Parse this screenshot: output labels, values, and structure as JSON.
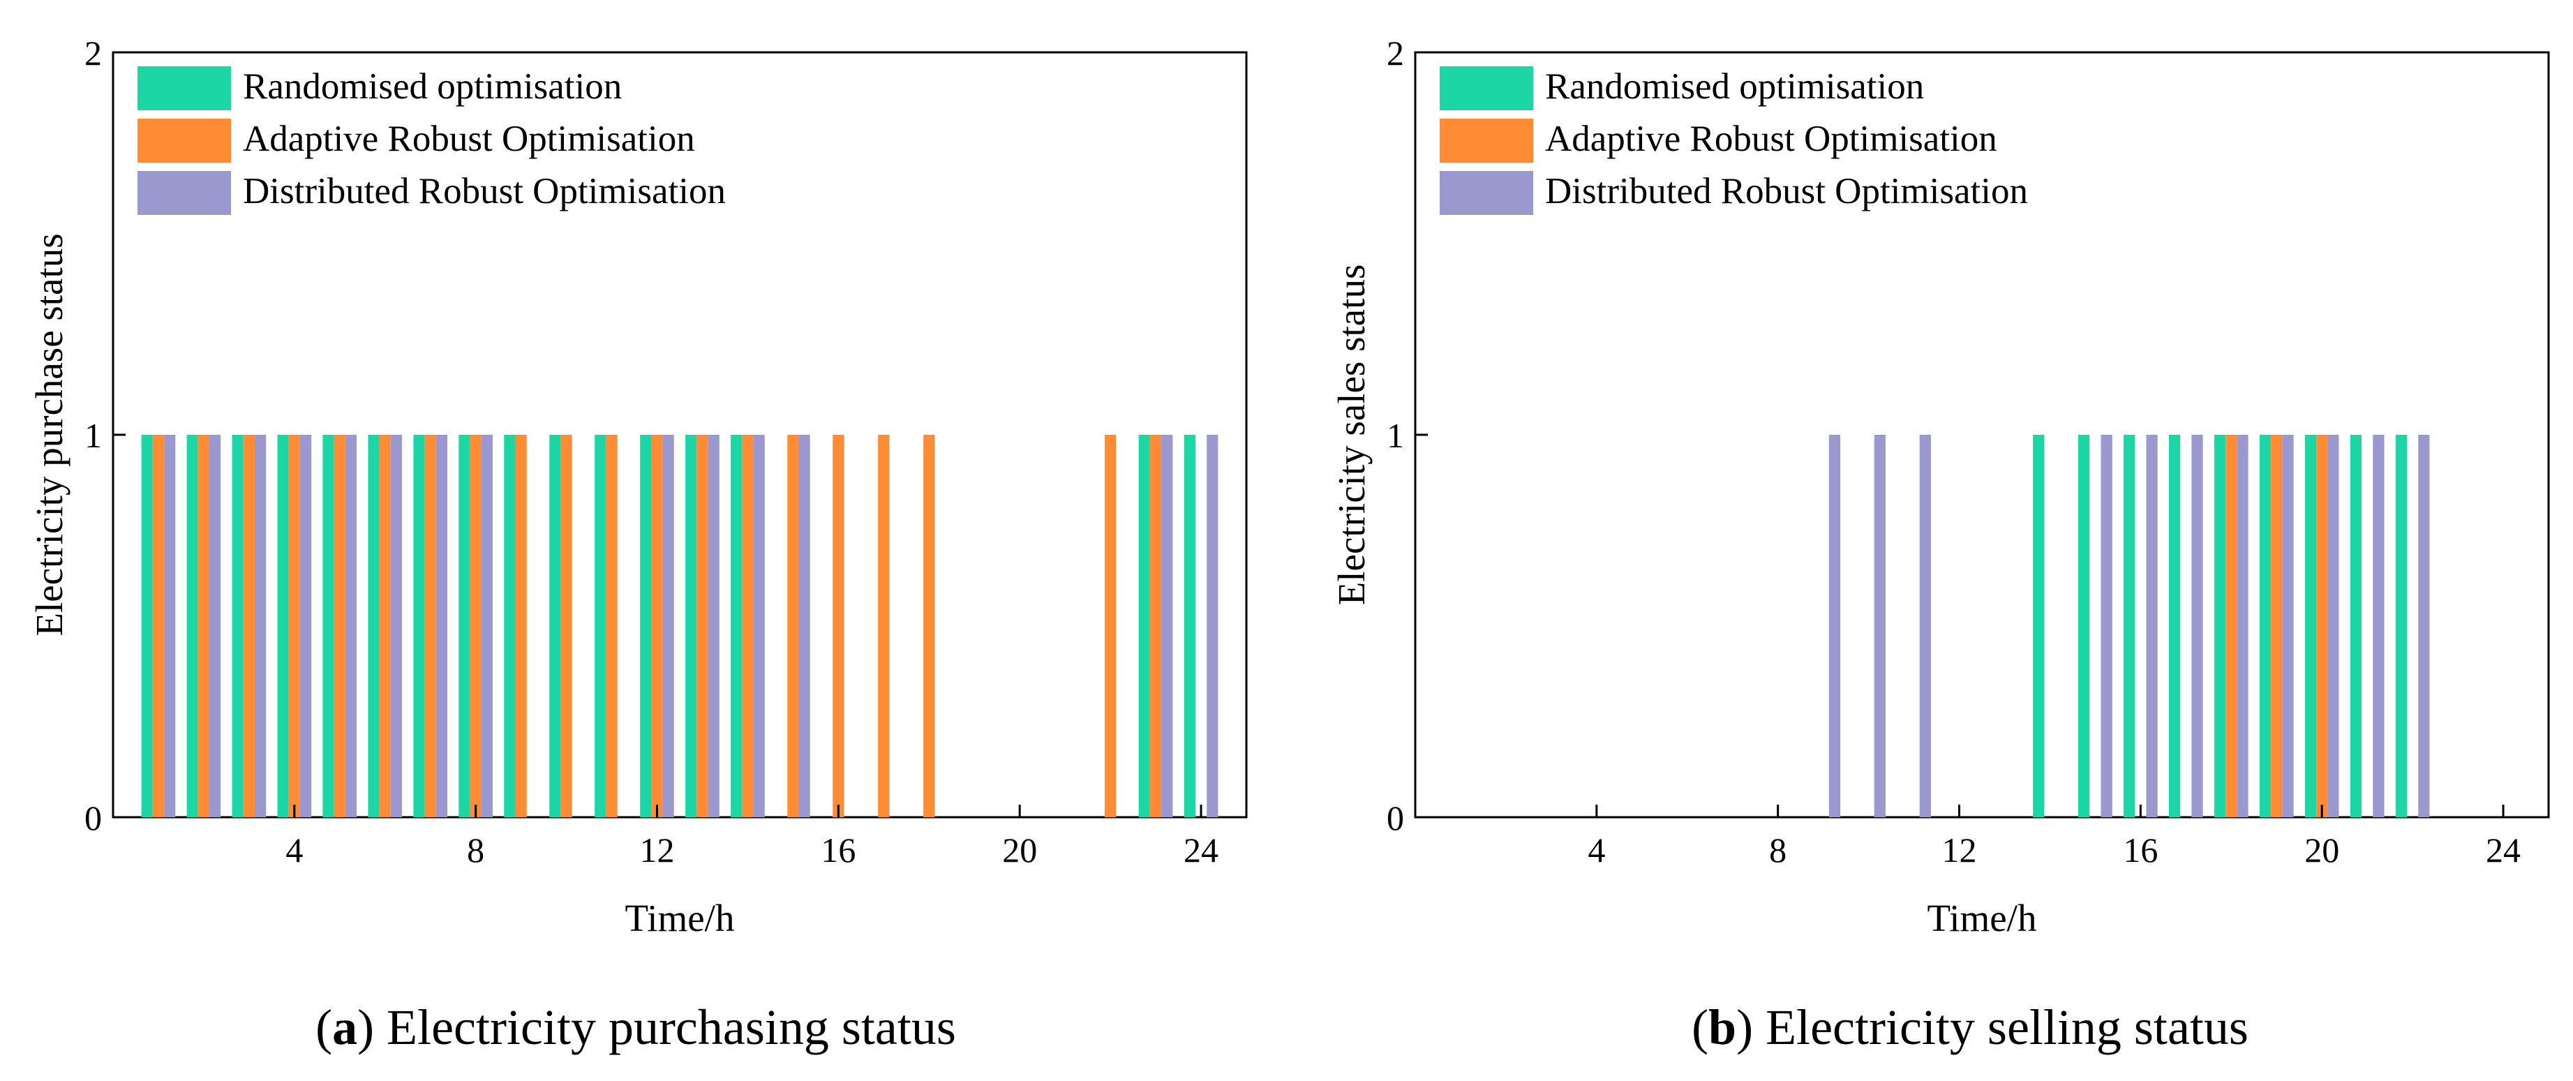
{
  "colors": {
    "randomised": "#1cd6a6",
    "adaptive": "#ff8c34",
    "distributed": "#9b97cf",
    "axis": "#000000"
  },
  "chart_data": [
    {
      "id": "a",
      "type": "bar",
      "caption_letter": "a",
      "caption_text": " Electricity purchasing status",
      "caption_open": "(",
      "caption_close": ")",
      "xlabel": "Time/h",
      "ylabel": "Electricity purchase status",
      "xlim": [
        0,
        25
      ],
      "ylim": [
        0,
        2
      ],
      "xticks": [
        4,
        8,
        12,
        16,
        20,
        24
      ],
      "yticks": [
        0,
        1,
        2
      ],
      "legend": "top-left",
      "x": [
        1,
        2,
        3,
        4,
        5,
        6,
        7,
        8,
        9,
        10,
        11,
        12,
        13,
        14,
        15,
        16,
        17,
        18,
        19,
        20,
        21,
        22,
        23,
        24
      ],
      "series": [
        {
          "name": "Randomised optimisation",
          "key": "randomised",
          "values": [
            1,
            1,
            1,
            1,
            1,
            1,
            1,
            1,
            1,
            1,
            1,
            1,
            1,
            1,
            0,
            0,
            0,
            0,
            0,
            0,
            0,
            0,
            1,
            1
          ]
        },
        {
          "name": "Adaptive Robust Optimisation",
          "key": "adaptive",
          "values": [
            1,
            1,
            1,
            1,
            1,
            1,
            1,
            1,
            1,
            1,
            1,
            1,
            1,
            1,
            1,
            1,
            1,
            1,
            0,
            0,
            0,
            1,
            1,
            0
          ]
        },
        {
          "name": "Distributed Robust Optimisation",
          "key": "distributed",
          "values": [
            1,
            1,
            1,
            1,
            1,
            1,
            1,
            1,
            0,
            0,
            0,
            1,
            1,
            1,
            1,
            0,
            0,
            0,
            0,
            0,
            0,
            0,
            1,
            1
          ]
        }
      ]
    },
    {
      "id": "b",
      "type": "bar",
      "caption_letter": "b",
      "caption_text": " Electricity selling status",
      "caption_open": "(",
      "caption_close": ")",
      "xlabel": "Time/h",
      "ylabel": "Electricity sales status",
      "xlim": [
        0,
        25
      ],
      "ylim": [
        0,
        2
      ],
      "xticks": [
        4,
        8,
        12,
        16,
        20,
        24
      ],
      "yticks": [
        0,
        1,
        2
      ],
      "legend": "top-left",
      "x": [
        1,
        2,
        3,
        4,
        5,
        6,
        7,
        8,
        9,
        10,
        11,
        12,
        13,
        14,
        15,
        16,
        17,
        18,
        19,
        20,
        21,
        22,
        23,
        24
      ],
      "series": [
        {
          "name": "Randomised optimisation",
          "key": "randomised",
          "values": [
            0,
            0,
            0,
            0,
            0,
            0,
            0,
            0,
            0,
            0,
            0,
            0,
            0,
            1,
            1,
            1,
            1,
            1,
            1,
            1,
            1,
            1,
            0,
            0
          ]
        },
        {
          "name": "Adaptive Robust Optimisation",
          "key": "adaptive",
          "values": [
            0,
            0,
            0,
            0,
            0,
            0,
            0,
            0,
            0,
            0,
            0,
            0,
            0,
            0,
            0,
            0,
            0,
            1,
            1,
            1,
            0,
            0,
            0,
            0
          ]
        },
        {
          "name": "Distributed Robust Optimisation",
          "key": "distributed",
          "values": [
            0,
            0,
            0,
            0,
            0,
            0,
            0,
            0,
            1,
            1,
            1,
            0,
            0,
            0,
            1,
            1,
            1,
            1,
            1,
            1,
            1,
            1,
            0,
            0
          ]
        }
      ]
    }
  ]
}
